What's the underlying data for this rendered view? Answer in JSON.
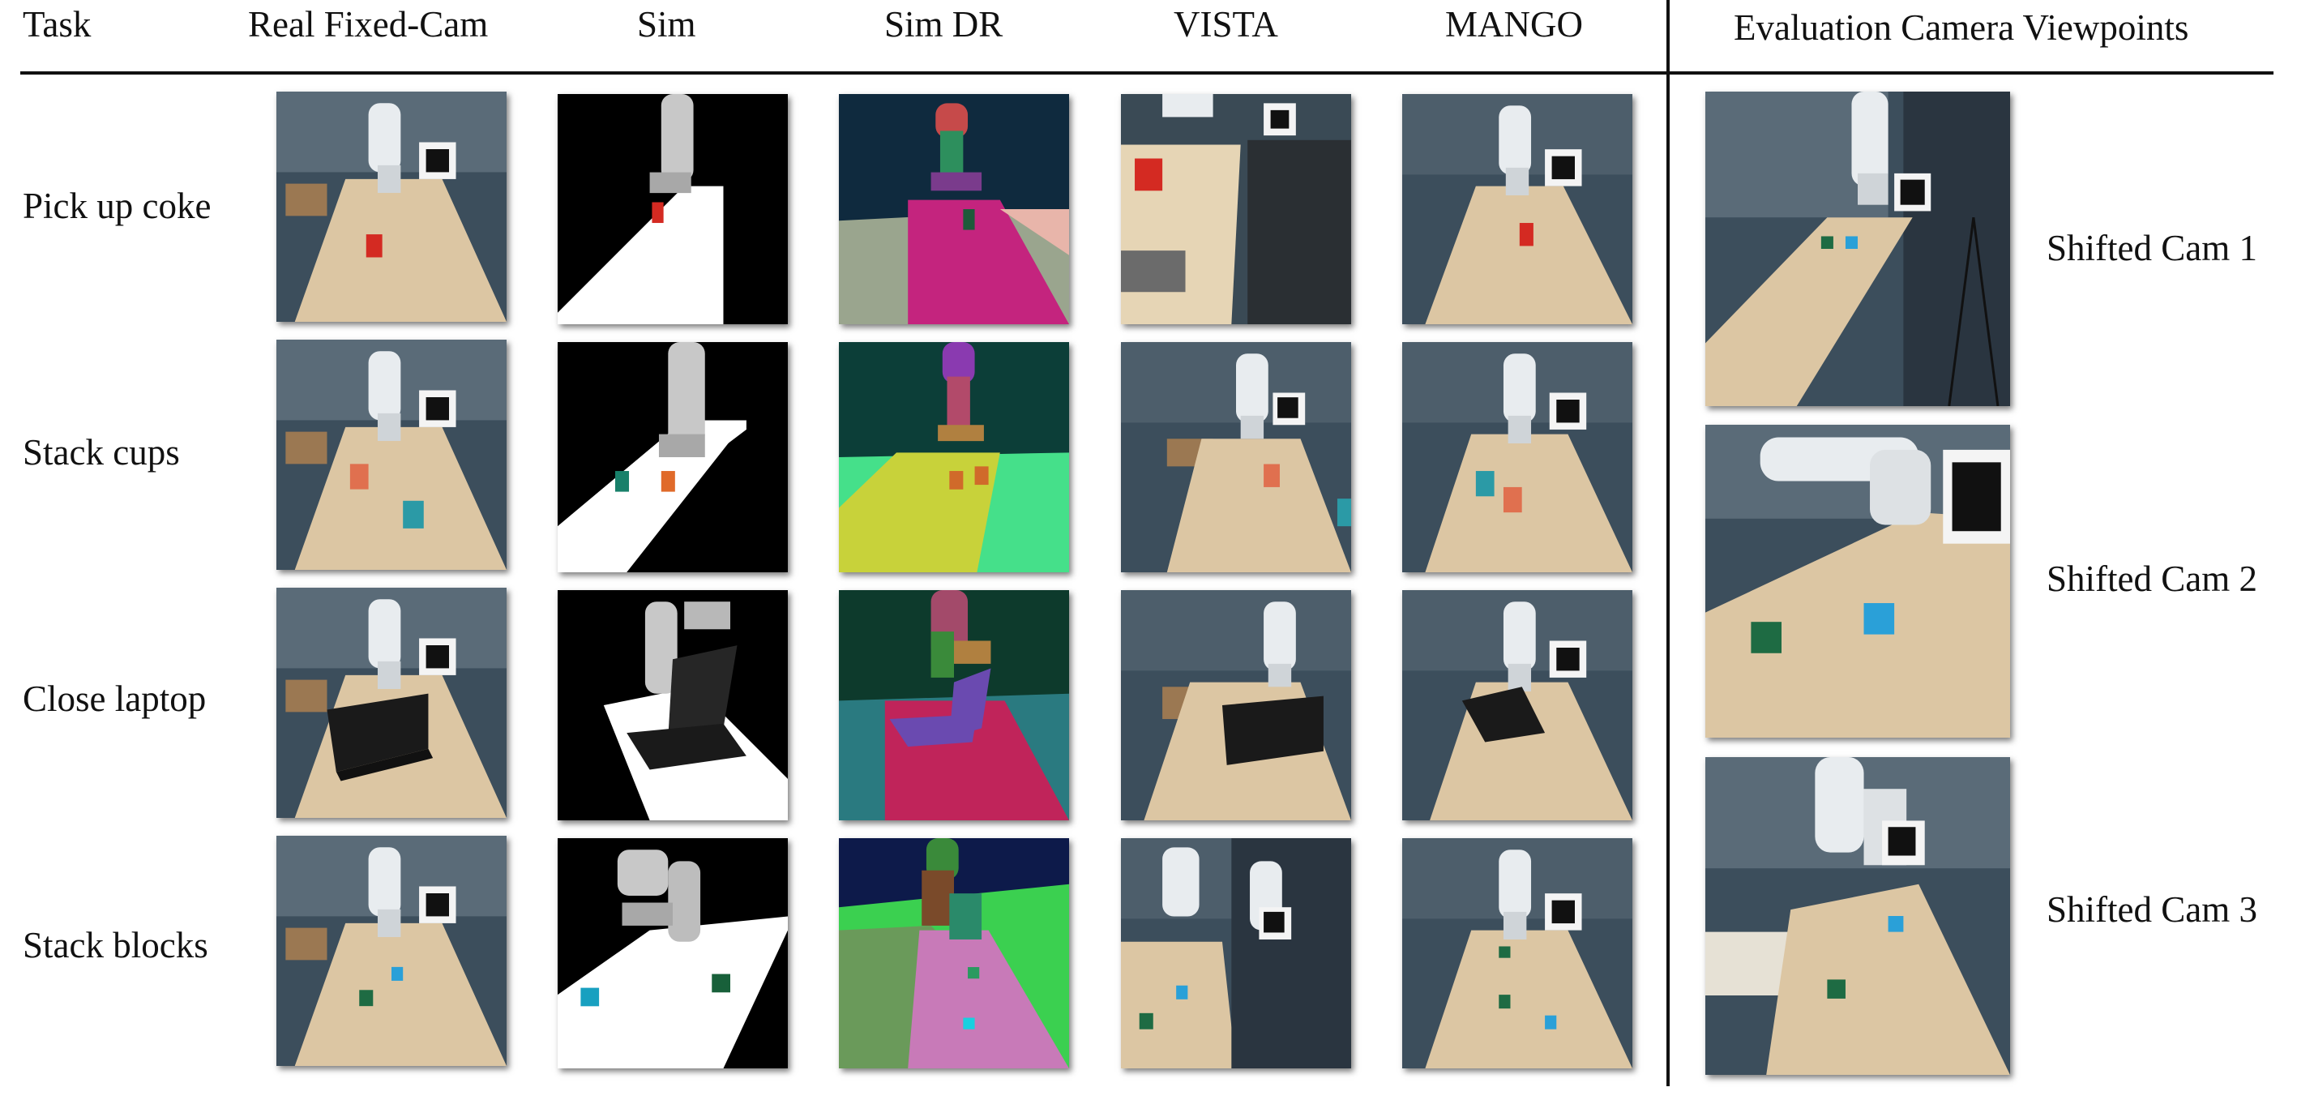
{
  "headers": {
    "task": "Task",
    "real": "Real Fixed-Cam",
    "sim": "Sim",
    "simdr": "Sim DR",
    "vista": "VISTA",
    "mango": "MANGO",
    "eval": "Evaluation Camera Viewpoints"
  },
  "tasks": [
    {
      "label": "Pick up coke"
    },
    {
      "label": "Stack cups"
    },
    {
      "label": "Close laptop"
    },
    {
      "label": "Stack blocks"
    }
  ],
  "cams": [
    {
      "label": "Shifted Cam 1"
    },
    {
      "label": "Shifted Cam 2"
    },
    {
      "label": "Shifted Cam 3"
    }
  ],
  "colors": {
    "table_wood": "#dcc6a3",
    "garage_bg": "#3c4e5c",
    "sim_bg": "#000000",
    "sim_table": "#ffffff",
    "coke_red": "#d42a22",
    "cup_orange": "#e0704f",
    "cup_teal": "#2b9aa6",
    "block_green": "#1e6b43",
    "block_blue": "#2aa0d8",
    "laptop_black": "#1a1a1a"
  }
}
